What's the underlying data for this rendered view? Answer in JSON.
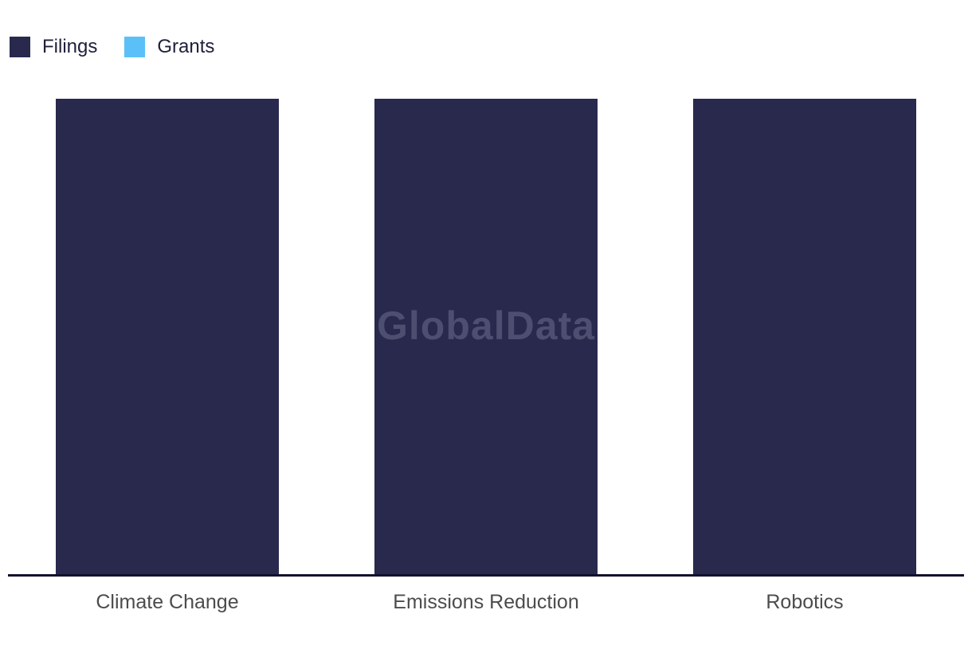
{
  "watermark": "GlobalData",
  "chart_data": {
    "type": "bar",
    "title": "",
    "xlabel": "",
    "ylabel": "",
    "categories": [
      "Climate Change",
      "Emissions Reduction",
      "Robotics"
    ],
    "series": [
      {
        "name": "Filings",
        "color": "#29294e",
        "values": [
          1,
          1,
          1
        ]
      },
      {
        "name": "Grants",
        "color": "#5bc0f7",
        "values": [
          0,
          0,
          0
        ]
      }
    ],
    "value_range": [
      0,
      1
    ],
    "grid": false,
    "value_axis_visible": false,
    "legend_position": "top-left",
    "layout_notes": "All three Filings bars render at identical full height; no value axis, ticks or data labels are shown. Grants bars have zero visible height. Single dark baseline under bars."
  },
  "colors": {
    "background": "#ffffff",
    "axis_line": "#12122e",
    "category_label": "#4c4c4c",
    "legend_label": "#20203c",
    "watermark": "#4e4e71"
  }
}
